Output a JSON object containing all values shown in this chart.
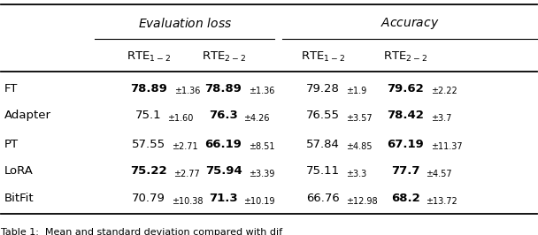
{
  "col_group_labels": [
    "Evaluation loss",
    "Accuracy"
  ],
  "col_headers": [
    "RTE$_{1-2}$",
    "RTE$_{2-2}$",
    "RTE$_{1-2}$",
    "RTE$_{2-2}$"
  ],
  "row_labels": [
    "FT",
    "Adapter",
    "PT",
    "LoRA",
    "BitFit"
  ],
  "cells": [
    [
      {
        "main": "78.89",
        "sub": "±1.36",
        "bold": true
      },
      {
        "main": "78.89",
        "sub": "±1.36",
        "bold": true
      },
      {
        "main": "79.28",
        "sub": "±1.9",
        "bold": false
      },
      {
        "main": "79.62",
        "sub": "±2.22",
        "bold": true
      }
    ],
    [
      {
        "main": "75.1",
        "sub": "±1.60",
        "bold": false
      },
      {
        "main": "76.3",
        "sub": "±4.26",
        "bold": true
      },
      {
        "main": "76.55",
        "sub": "±3.57",
        "bold": false
      },
      {
        "main": "78.42",
        "sub": "±3.7",
        "bold": true
      }
    ],
    [
      {
        "main": "57.55",
        "sub": "±2.71",
        "bold": false
      },
      {
        "main": "66.19",
        "sub": "±8.51",
        "bold": true
      },
      {
        "main": "57.84",
        "sub": "±4.85",
        "bold": false
      },
      {
        "main": "67.19",
        "sub": "±11.37",
        "bold": true
      }
    ],
    [
      {
        "main": "75.22",
        "sub": "±2.77",
        "bold": true
      },
      {
        "main": "75.94",
        "sub": "±3.39",
        "bold": true
      },
      {
        "main": "75.11",
        "sub": "±3.3",
        "bold": false
      },
      {
        "main": "77.7",
        "sub": "±4.57",
        "bold": true
      }
    ],
    [
      {
        "main": "70.79",
        "sub": "±10.38",
        "bold": false
      },
      {
        "main": "71.3",
        "sub": "±10.19",
        "bold": true
      },
      {
        "main": "66.76",
        "sub": "±12.98",
        "bold": false
      },
      {
        "main": "68.2",
        "sub": "±13.72",
        "bold": true
      }
    ]
  ],
  "background_color": "#ffffff",
  "font_size_main": 9.5,
  "font_size_sub": 7.0,
  "font_size_header": 9.5,
  "font_size_group": 10.0,
  "caption": "Table 1:  Mean and standard deviation compared with dif"
}
